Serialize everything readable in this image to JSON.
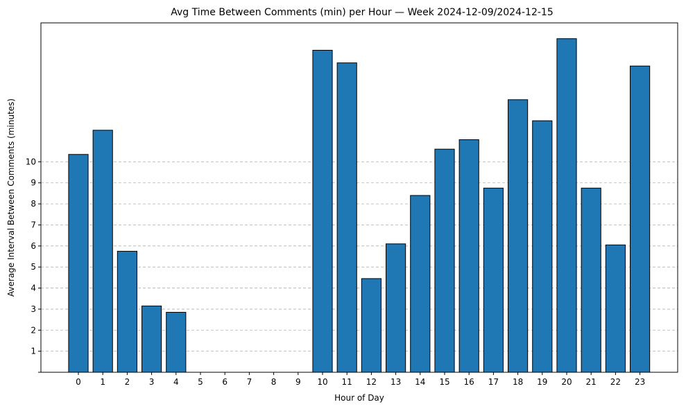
{
  "chart_data": {
    "type": "bar",
    "title": "Avg Time Between Comments (min) per Hour — Week 2024-12-09/2024-12-15",
    "xlabel": "Hour of Day",
    "ylabel": "Average Interval Between Comments (minutes)",
    "categories": [
      "0",
      "1",
      "2",
      "3",
      "4",
      "5",
      "6",
      "7",
      "8",
      "9",
      "10",
      "11",
      "12",
      "13",
      "14",
      "15",
      "16",
      "17",
      "18",
      "19",
      "20",
      "21",
      "22",
      "23"
    ],
    "values": [
      10.35,
      11.5,
      5.75,
      3.15,
      2.85,
      0,
      0,
      0,
      0,
      0,
      15.3,
      14.7,
      4.45,
      6.1,
      8.4,
      10.6,
      11.05,
      8.75,
      12.95,
      11.95,
      15.85,
      8.75,
      6.05,
      14.55
    ],
    "yticks": [
      "1",
      "2",
      "3",
      "4",
      "5",
      "6",
      "7",
      "8",
      "9",
      "10"
    ],
    "ylim": [
      0,
      16.6
    ],
    "grid": "y-dashed",
    "bar_color": "#1f77b4",
    "edge_color": "#000000",
    "grid_color": "#b0b0b0"
  }
}
